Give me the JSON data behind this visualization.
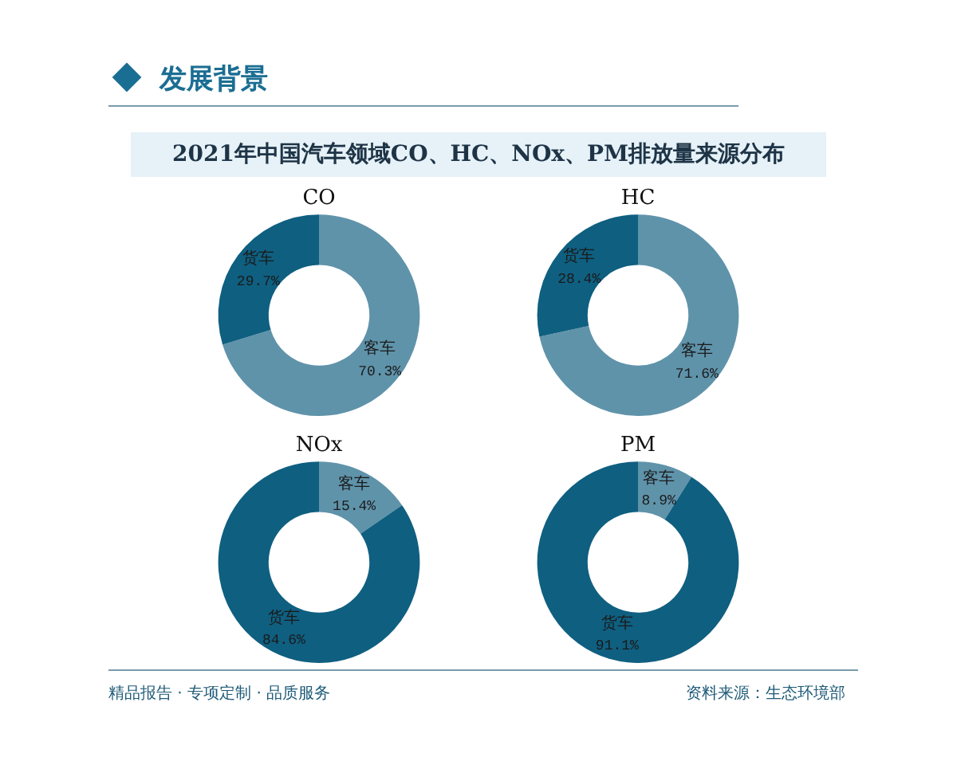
{
  "chart_data": [
    {
      "type": "other",
      "subtitle": "发展背景",
      "title": "2021年中国汽车领域CO、HC、NOx、PM排放量来源分布",
      "annotations": [
        "精品报告 · 专项定制 · 品质服务",
        "资料来源：生态环境部"
      ]
    },
    {
      "type": "donut",
      "title": "CO",
      "categories": [
        "客车",
        "货车"
      ],
      "values": [
        70.3,
        29.7
      ],
      "value_labels": [
        "70.3%",
        "29.7%"
      ],
      "colors": [
        "#5f93aa",
        "#0f5f80"
      ]
    },
    {
      "type": "donut",
      "title": "HC",
      "categories": [
        "客车",
        "货车"
      ],
      "values": [
        71.6,
        28.4
      ],
      "value_labels": [
        "71.6%",
        "28.4%"
      ],
      "colors": [
        "#5f93aa",
        "#0f5f80"
      ]
    },
    {
      "type": "donut",
      "title": "NOx",
      "categories": [
        "客车",
        "货车"
      ],
      "values": [
        15.4,
        84.6
      ],
      "value_labels": [
        "15.4%",
        "84.6%"
      ],
      "colors": [
        "#5f93aa",
        "#0f5f80"
      ]
    },
    {
      "type": "donut",
      "title": "PM",
      "categories": [
        "客车",
        "货车"
      ],
      "values": [
        8.9,
        91.1
      ],
      "value_labels": [
        "8.9%",
        "91.1%"
      ],
      "colors": [
        "#5f93aa",
        "#0f5f80"
      ]
    }
  ]
}
